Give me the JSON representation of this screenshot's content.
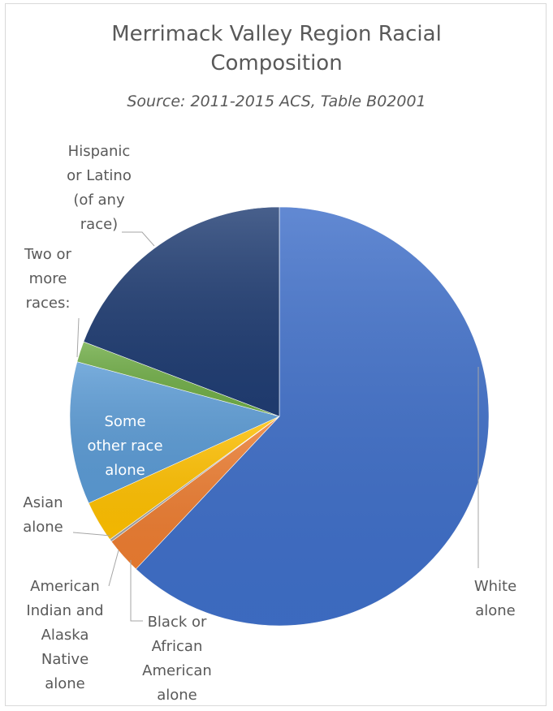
{
  "chart_data": {
    "type": "pie",
    "title": "Merrimack Valley Region Racial Composition",
    "title_lines": [
      "Merrimack Valley Region Racial",
      "Composition"
    ],
    "subtitle": "Source: 2011-2015 ACS, Table B02001",
    "grid": false,
    "legend": "none",
    "slices": [
      {
        "label": "White alone",
        "label_lines": [
          "White",
          "alone"
        ],
        "value": 62.0,
        "color": "#3f6fc9"
      },
      {
        "label": "Black or African American alone",
        "label_lines": [
          "Black or",
          "African",
          "American",
          "alone"
        ],
        "value": 2.8,
        "color": "#ed7d31"
      },
      {
        "label": "American Indian and Alaska Native alone",
        "label_lines": [
          "American",
          "Indian and",
          "Alaska",
          "Native",
          "alone"
        ],
        "value": 0.2,
        "color": "#a5a5a5"
      },
      {
        "label": "Asian alone",
        "label_lines": [
          "Asian",
          "alone"
        ],
        "value": 3.2,
        "color": "#ffc000"
      },
      {
        "label": "Some other race alone",
        "label_lines": [
          "Some",
          "other race",
          "alone"
        ],
        "value": 11.0,
        "color": "#5b9bd5"
      },
      {
        "label": "Two or more races:",
        "label_lines": [
          "Two or",
          "more",
          "races:"
        ],
        "value": 1.6,
        "color": "#70ad47"
      },
      {
        "label": "Hispanic or Latino (of any race)",
        "label_lines": [
          "Hispanic",
          "or Latino",
          "(of any",
          "race)"
        ],
        "value": 19.2,
        "color": "#203d73"
      }
    ]
  }
}
